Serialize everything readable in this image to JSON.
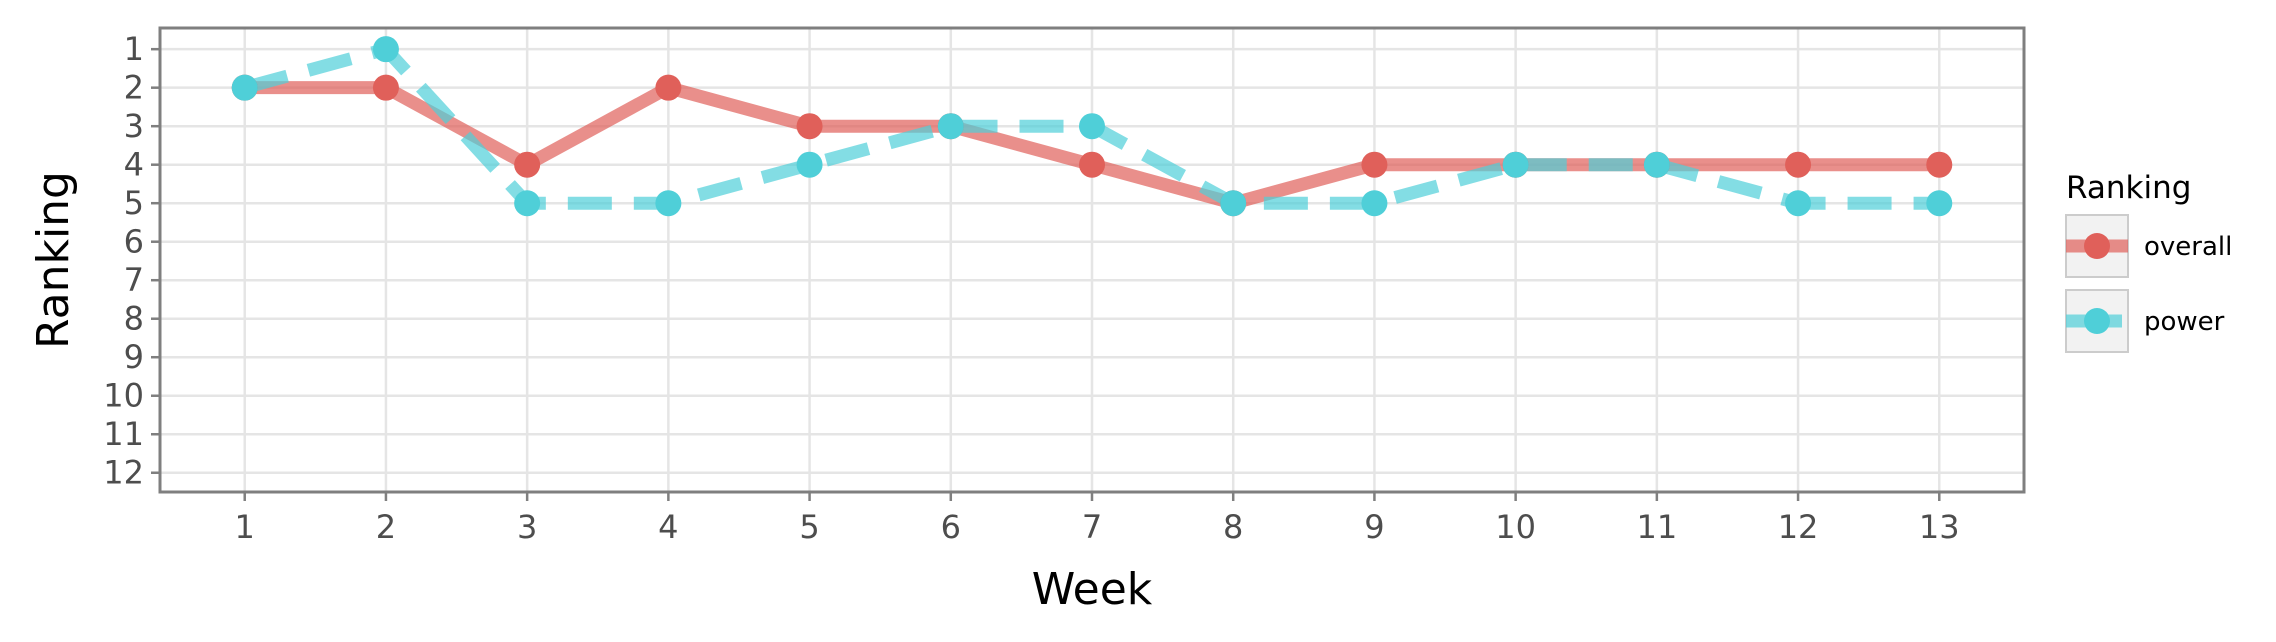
{
  "chart_data": {
    "type": "line",
    "title": "",
    "xlabel": "Week",
    "ylabel": "Ranking",
    "x": [
      1,
      2,
      3,
      4,
      5,
      6,
      7,
      8,
      9,
      10,
      11,
      12,
      13
    ],
    "xticks": [
      "1",
      "2",
      "3",
      "4",
      "5",
      "6",
      "7",
      "8",
      "9",
      "10",
      "11",
      "12",
      "13"
    ],
    "yticks": [
      "1",
      "2",
      "3",
      "4",
      "5",
      "6",
      "7",
      "8",
      "9",
      "10",
      "11",
      "12"
    ],
    "xlim": [
      0.4,
      13.6
    ],
    "ylim": [
      12.5,
      0.45
    ],
    "y_reversed": true,
    "grid": true,
    "legend": {
      "title": "Ranking",
      "placement": "right"
    },
    "series": [
      {
        "name": "overall",
        "values": [
          2,
          2,
          4,
          2,
          3,
          3,
          4,
          5,
          4,
          4,
          4,
          4,
          4
        ],
        "color": "#E0605A",
        "line_style": "solid"
      },
      {
        "name": "power",
        "values": [
          2,
          1,
          5,
          5,
          4,
          3,
          3,
          5,
          5,
          4,
          4,
          5,
          5
        ],
        "color": "#4FCFD8",
        "line_style": "dashed"
      }
    ]
  }
}
